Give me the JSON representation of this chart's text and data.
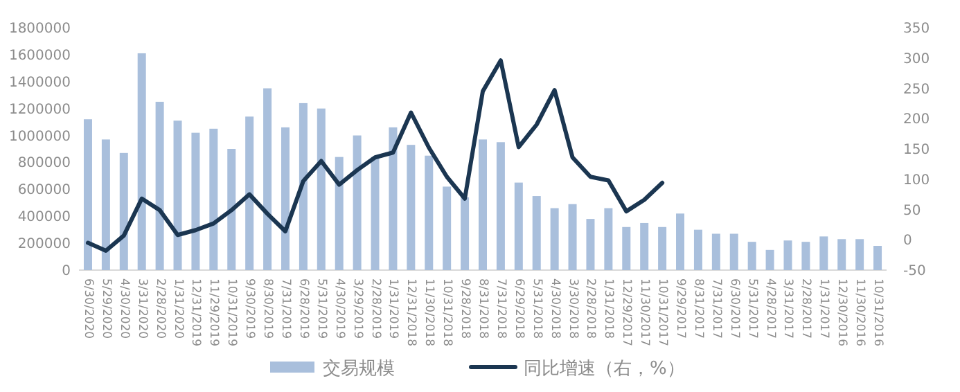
{
  "chart_data": {
    "type": "bar",
    "categories": [
      "6/30/2020",
      "5/29/2020",
      "4/30/2020",
      "3/31/2020",
      "2/28/2020",
      "1/31/2020",
      "12/31/2019",
      "11/29/2019",
      "10/31/2019",
      "9/30/2019",
      "8/30/2019",
      "7/31/2019",
      "6/28/2019",
      "5/31/2019",
      "4/30/2019",
      "3/29/2019",
      "2/28/2019",
      "1/31/2019",
      "12/31/2018",
      "11/30/2018",
      "10/31/2018",
      "9/28/2018",
      "8/31/2018",
      "7/31/2018",
      "6/29/2018",
      "5/31/2018",
      "4/30/2018",
      "3/30/2018",
      "2/28/2018",
      "1/31/2018",
      "12/29/2017",
      "11/30/2017",
      "10/31/2017",
      "9/29/2017",
      "8/31/2017",
      "7/31/2017",
      "6/30/2017",
      "5/31/2017",
      "4/28/2017",
      "3/31/2017",
      "2/28/2017",
      "1/31/2017",
      "12/30/2016",
      "11/30/2016",
      "10/31/2016"
    ],
    "series": [
      {
        "name": "交易规模",
        "color": "#a9bfdc",
        "values": [
          1120000,
          970000,
          870000,
          1610000,
          1250000,
          1110000,
          1020000,
          1050000,
          900000,
          1140000,
          1350000,
          1060000,
          1240000,
          1200000,
          840000,
          1000000,
          840000,
          1060000,
          930000,
          850000,
          620000,
          540000,
          970000,
          950000,
          650000,
          550000,
          460000,
          490000,
          380000,
          460000,
          320000,
          350000,
          320000,
          420000,
          300000,
          270000,
          270000,
          210000,
          150000,
          220000,
          210000,
          250000,
          230000,
          230000,
          180000
        ]
      },
      {
        "name": "同比增速（右，%）",
        "type": "line",
        "axis": "y2",
        "color": "#1b3651",
        "values": [
          -5,
          -18,
          7,
          68,
          49,
          8,
          16,
          27,
          49,
          75,
          43,
          14,
          97,
          130,
          91,
          115,
          136,
          144,
          210,
          152,
          104,
          68,
          245,
          296,
          153,
          190,
          247,
          136,
          104,
          98,
          47,
          66,
          94,
          null,
          null,
          null,
          null,
          null,
          null,
          null,
          null,
          null,
          null,
          null,
          null
        ]
      }
    ],
    "ylim": [
      0,
      1800000
    ],
    "yticks": [
      0,
      200000,
      400000,
      600000,
      800000,
      1000000,
      1200000,
      1400000,
      1600000,
      1800000
    ],
    "y2lim": [
      -50,
      350
    ],
    "y2ticks": [
      -50,
      0,
      50,
      100,
      150,
      200,
      250,
      300,
      350
    ],
    "legend": "bottom"
  }
}
